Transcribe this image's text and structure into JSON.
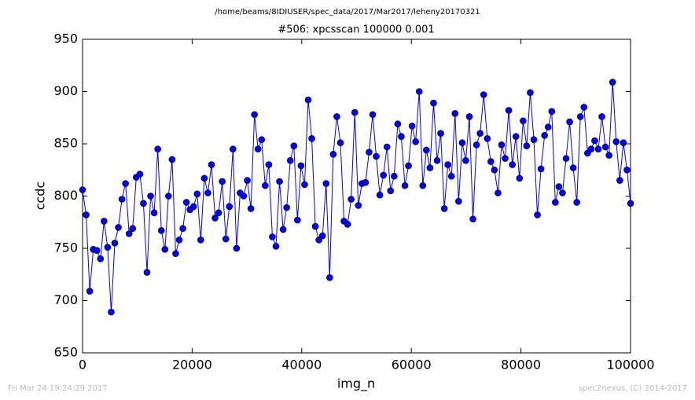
{
  "chart_data": {
    "type": "line",
    "file_path": "/home/beams/8IDIUSER/spec_data/2017/Mar2017/leheny20170321",
    "title": "#506: xpcsscan 100000 0.001",
    "x_label": "img_n",
    "y_label": "ccdc",
    "footer_left": "Fri Mar 24 19:24:29 2017",
    "footer_right": "spec2nexus, (C) 2014-2017",
    "xlim": [
      0,
      100000
    ],
    "ylim": [
      650,
      950
    ],
    "xticks": [
      0,
      20000,
      40000,
      60000,
      80000,
      100000
    ],
    "yticks": [
      650,
      700,
      750,
      800,
      850,
      900,
      950
    ],
    "grid": false,
    "x": [
      0,
      654,
      1307,
      1961,
      2614,
      3268,
      3922,
      4575,
      5229,
      5882,
      6536,
      7190,
      7843,
      8497,
      9150,
      9804,
      10458,
      11111,
      11765,
      12418,
      13072,
      13726,
      14379,
      15033,
      15686,
      16340,
      16994,
      17647,
      18301,
      18954,
      19608,
      20262,
      20915,
      21569,
      22222,
      22876,
      23530,
      24183,
      24837,
      25490,
      26144,
      26798,
      27451,
      28105,
      28758,
      29412,
      30066,
      30719,
      31373,
      32026,
      32680,
      33334,
      33987,
      34641,
      35294,
      35948,
      36602,
      37255,
      37909,
      38562,
      39216,
      39870,
      40523,
      41177,
      41830,
      42484,
      43138,
      43791,
      44445,
      45098,
      45752,
      46406,
      47059,
      47713,
      48366,
      49020,
      49674,
      50327,
      50981,
      51634,
      52288,
      52942,
      53595,
      54249,
      54902,
      55556,
      56210,
      56863,
      57517,
      58170,
      58824,
      59478,
      60131,
      60785,
      61438,
      62092,
      62746,
      63399,
      64053,
      64706,
      65360,
      66014,
      66667,
      67321,
      67974,
      68628,
      69282,
      69935,
      70589,
      71242,
      71896,
      72550,
      73203,
      73857,
      74510,
      75164,
      75818,
      76471,
      77125,
      77778,
      78432,
      79086,
      79739,
      80393,
      81046,
      81700,
      82354,
      83007,
      83661,
      84314,
      84968,
      85622,
      86275,
      86929,
      87582,
      88236,
      88890,
      89543,
      90197,
      90850,
      91504,
      92158,
      92811,
      93465,
      94118,
      94772,
      95426,
      96079,
      96733,
      97386,
      98040,
      98694,
      99347,
      100000
    ],
    "series": [
      {
        "name": "ccdc",
        "color": "#0000ff",
        "values": [
          806,
          782,
          709,
          749,
          748,
          740,
          776,
          751,
          689,
          755,
          770,
          797,
          812,
          764,
          769,
          818,
          821,
          793,
          727,
          800,
          784,
          845,
          767,
          749,
          800,
          835,
          745,
          758,
          769,
          794,
          787,
          790,
          802,
          758,
          817,
          803,
          830,
          779,
          784,
          814,
          759,
          790,
          845,
          750,
          803,
          800,
          815,
          788,
          878,
          845,
          854,
          810,
          830,
          761,
          752,
          814,
          768,
          789,
          834,
          848,
          777,
          829,
          811,
          892,
          855,
          771,
          758,
          762,
          812,
          722,
          840,
          876,
          851,
          776,
          773,
          797,
          880,
          791,
          812,
          813,
          842,
          878,
          838,
          801,
          820,
          847,
          805,
          819,
          869,
          857,
          810,
          829,
          867,
          852,
          900,
          810,
          844,
          827,
          889,
          834,
          860,
          788,
          830,
          819,
          879,
          795,
          851,
          834,
          876,
          778,
          849,
          860,
          897,
          855,
          833,
          825,
          803,
          849,
          836,
          882,
          830,
          857,
          817,
          872,
          848,
          899,
          854,
          782,
          826,
          858,
          866,
          881,
          794,
          809,
          803,
          836,
          871,
          827,
          794,
          876,
          885,
          841,
          845,
          853,
          845,
          876,
          847,
          839,
          909,
          852,
          815,
          851,
          825,
          793
        ]
      }
    ]
  }
}
